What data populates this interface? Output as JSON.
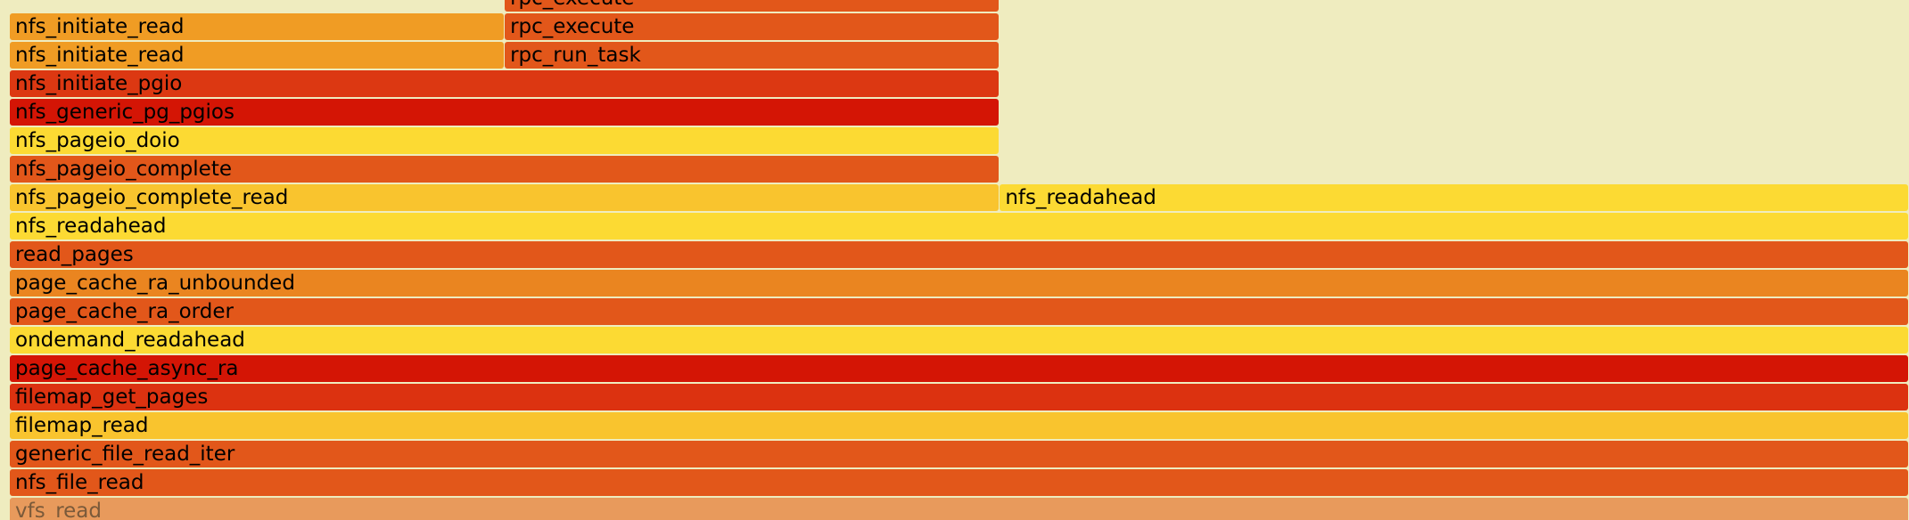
{
  "chart_data": {
    "type": "flamegraph",
    "frames": [
      {
        "name": "rpc_execute",
        "depth": 18,
        "start": 0.2606,
        "width": 0.2606,
        "color": "#e2571a"
      },
      {
        "name": "nfs_initiate_read",
        "depth": 17,
        "start": 0.0,
        "width": 0.2606,
        "color": "#f09c24"
      },
      {
        "name": "rpc_execute",
        "depth": 17,
        "start": 0.2606,
        "width": 0.2606,
        "color": "#e2571a"
      },
      {
        "name": "nfs_initiate_read",
        "depth": 16,
        "start": 0.0,
        "width": 0.2606,
        "color": "#f09c24"
      },
      {
        "name": "rpc_run_task",
        "depth": 16,
        "start": 0.2606,
        "width": 0.2606,
        "color": "#e2571a"
      },
      {
        "name": "nfs_initiate_pgio",
        "depth": 15,
        "start": 0.0,
        "width": 0.5213,
        "color": "#dc3812"
      },
      {
        "name": "nfs_generic_pg_pgios",
        "depth": 14,
        "start": 0.0,
        "width": 0.5213,
        "color": "#d41505"
      },
      {
        "name": "nfs_pageio_doio",
        "depth": 13,
        "start": 0.0,
        "width": 0.5213,
        "color": "#fcda33"
      },
      {
        "name": "nfs_pageio_complete",
        "depth": 12,
        "start": 0.0,
        "width": 0.5213,
        "color": "#e2571a"
      },
      {
        "name": "nfs_pageio_complete_read",
        "depth": 11,
        "start": 0.0,
        "width": 0.5213,
        "color": "#f9c42e"
      },
      {
        "name": "nfs_readahead",
        "depth": 11,
        "start": 0.5213,
        "width": 0.4787,
        "color": "#fcda33"
      },
      {
        "name": "nfs_readahead",
        "depth": 10,
        "start": 0.0,
        "width": 1.0,
        "color": "#fcda33"
      },
      {
        "name": "read_pages",
        "depth": 9,
        "start": 0.0,
        "width": 1.0,
        "color": "#e2571a"
      },
      {
        "name": "page_cache_ra_unbounded",
        "depth": 8,
        "start": 0.0,
        "width": 1.0,
        "color": "#ea8520"
      },
      {
        "name": "page_cache_ra_order",
        "depth": 7,
        "start": 0.0,
        "width": 1.0,
        "color": "#e2571a"
      },
      {
        "name": "ondemand_readahead",
        "depth": 6,
        "start": 0.0,
        "width": 1.0,
        "color": "#fcda33"
      },
      {
        "name": "page_cache_async_ra",
        "depth": 5,
        "start": 0.0,
        "width": 1.0,
        "color": "#d41505"
      },
      {
        "name": "filemap_get_pages",
        "depth": 4,
        "start": 0.0,
        "width": 1.0,
        "color": "#dc3210"
      },
      {
        "name": "filemap_read",
        "depth": 3,
        "start": 0.0,
        "width": 1.0,
        "color": "#f9c42e"
      },
      {
        "name": "generic_file_read_iter",
        "depth": 2,
        "start": 0.0,
        "width": 1.0,
        "color": "#e2571a"
      },
      {
        "name": "nfs_file_read",
        "depth": 1,
        "start": 0.0,
        "width": 1.0,
        "color": "#e2571a"
      },
      {
        "name": "vfs_read",
        "depth": 0,
        "start": 0.0,
        "width": 1.0,
        "color": "#e89a5c",
        "dim": true
      }
    ]
  }
}
